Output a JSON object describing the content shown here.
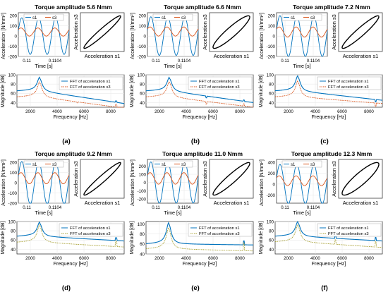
{
  "colors": {
    "s1": "#0072BD",
    "s3": "#D95319",
    "s3_alt": "#A8A032",
    "loop": "#000000",
    "grid": "#e6e6e6"
  },
  "chart_data": [
    {
      "panel_label": "(a)",
      "title": "Torque amplitude 5.6 Nmm",
      "time_plot": {
        "type": "line",
        "xlabel": "Time [s]",
        "ylabel": "Acceleration [N/mm²]",
        "xticks": [
          "0.11",
          "0.1104"
        ],
        "yticks": [
          -200,
          -100,
          0,
          100,
          200
        ],
        "ylim": [
          -200,
          230
        ],
        "series": [
          {
            "name": "s1",
            "amplitude": 180,
            "offset": 0
          },
          {
            "name": "s3",
            "amplitude": 40,
            "offset": 40
          }
        ],
        "cycles": 3,
        "legend": "top"
      },
      "phase_plot": {
        "xlabel": "Acceleration s1",
        "ylabel": "Acceleration s3",
        "loop_width": 0.12
      },
      "fft_plot": {
        "type": "line",
        "xlabel": "Frequency [Hz]",
        "ylabel": "Magnitude [dB]",
        "xticks": [
          2000,
          4000,
          6000,
          8000
        ],
        "xlim": [
          1000,
          9000
        ],
        "yticks": [
          40,
          60,
          80,
          100
        ],
        "ylim": [
          30,
          100
        ],
        "series": [
          {
            "name": "FFT of acceleration s1",
            "color_key": "s1",
            "style": "solid",
            "base": 65,
            "peak_f": 2700,
            "peak": 92,
            "tail": 38,
            "spikes": [
              [
                8400,
                3
              ]
            ]
          },
          {
            "name": "FFT of acceleration s3",
            "color_key": "s3",
            "style": "dotted",
            "base": 52,
            "peak_f": 2700,
            "peak": 82,
            "tail": 28,
            "spikes": [
              [
                5500,
                -2
              ],
              [
                8400,
                6
              ]
            ]
          }
        ],
        "legend": "top-right"
      }
    },
    {
      "panel_label": "(b)",
      "title": "Torque amplitude 6.6 Nmm",
      "time_plot": {
        "type": "line",
        "xlabel": "Time [s]",
        "ylabel": "Acceleration [N/mm²]",
        "xticks": [
          "0.11",
          "0.1104"
        ],
        "yticks": [
          -200,
          -100,
          0,
          100,
          200
        ],
        "ylim": [
          -200,
          230
        ],
        "series": [
          {
            "name": "s1",
            "amplitude": 190,
            "offset": 0
          },
          {
            "name": "s3",
            "amplitude": 45,
            "offset": 45
          }
        ],
        "cycles": 3,
        "legend": "top"
      },
      "phase_plot": {
        "xlabel": "Acceleration s1",
        "ylabel": "Acceleration s3",
        "loop_width": 0.18
      },
      "fft_plot": {
        "type": "line",
        "xlabel": "Frequency [Hz]",
        "ylabel": "Magnitude [dB]",
        "xticks": [
          2000,
          4000,
          6000,
          8000
        ],
        "xlim": [
          1000,
          9000
        ],
        "yticks": [
          40,
          60,
          80,
          100
        ],
        "ylim": [
          30,
          100
        ],
        "series": [
          {
            "name": "FFT of acceleration s1",
            "color_key": "s1",
            "style": "solid",
            "base": 65,
            "peak_f": 2750,
            "peak": 92,
            "tail": 40,
            "spikes": [
              [
                5500,
                -4
              ],
              [
                8300,
                3
              ]
            ]
          },
          {
            "name": "FFT of acceleration s3",
            "color_key": "s3",
            "style": "dotted",
            "base": 52,
            "peak_f": 2750,
            "peak": 83,
            "tail": 30,
            "spikes": [
              [
                5500,
                -6
              ],
              [
                8300,
                5
              ]
            ]
          }
        ],
        "legend": "top-right"
      }
    },
    {
      "panel_label": "(c)",
      "title": "Torque amplitude 7.2 Nmm",
      "time_plot": {
        "type": "line",
        "xlabel": "Time [s]",
        "ylabel": "Acceleration [N/mm²]",
        "xticks": [
          "0.11",
          "0.1104"
        ],
        "yticks": [
          -200,
          -100,
          0,
          100,
          200
        ],
        "ylim": [
          -200,
          230
        ],
        "series": [
          {
            "name": "s1",
            "amplitude": 200,
            "offset": 0
          },
          {
            "name": "s3",
            "amplitude": 50,
            "offset": 40
          }
        ],
        "cycles": 3,
        "legend": "top"
      },
      "phase_plot": {
        "xlabel": "Acceleration s1",
        "ylabel": "Acceleration s3",
        "loop_width": 0.15
      },
      "fft_plot": {
        "type": "line",
        "xlabel": "Frequency [Hz]",
        "ylabel": "Magnitude [dB]",
        "xticks": [
          2000,
          4000,
          6000,
          8000
        ],
        "xlim": [
          1000,
          9000
        ],
        "yticks": [
          40,
          60,
          80,
          100
        ],
        "ylim": [
          30,
          100
        ],
        "series": [
          {
            "name": "FFT of acceleration s1",
            "color_key": "s1",
            "style": "solid",
            "base": 65,
            "peak_f": 2700,
            "peak": 95,
            "tail": 45,
            "spikes": [
              [
                8500,
                -5
              ]
            ]
          },
          {
            "name": "FFT of acceleration s3",
            "color_key": "s3",
            "style": "dotted",
            "base": 52,
            "peak_f": 2700,
            "peak": 84,
            "tail": 38,
            "spikes": [
              [
                8500,
                -8
              ]
            ]
          }
        ],
        "legend": "top-right"
      }
    },
    {
      "panel_label": "(d)",
      "title": "Torque amplitude 9.2 Nmm",
      "time_plot": {
        "type": "line",
        "xlabel": "Time [s]",
        "ylabel": "Acceleration [N/mm²]",
        "xticks": [
          "0.11",
          "0.1104"
        ],
        "yticks": [
          -200,
          -100,
          0,
          100,
          200
        ],
        "ylim": [
          -200,
          230
        ],
        "series": [
          {
            "name": "s1",
            "amplitude": 210,
            "offset": 0
          },
          {
            "name": "s3",
            "amplitude": 55,
            "offset": 45
          }
        ],
        "cycles": 3,
        "legend": "top"
      },
      "phase_plot": {
        "xlabel": "Acceleration s1",
        "ylabel": "Acceleration s3",
        "loop_width": 0.12
      },
      "fft_plot": {
        "type": "line",
        "xlabel": "Frequency [Hz]",
        "ylabel": "Magnitude [dB]",
        "xticks": [
          2000,
          4000,
          6000,
          8000
        ],
        "xlim": [
          1000,
          9000
        ],
        "yticks": [
          40,
          60,
          80,
          100
        ],
        "ylim": [
          30,
          100
        ],
        "series": [
          {
            "name": "FFT of acceleration s1",
            "color_key": "s1",
            "style": "solid",
            "base": 68,
            "peak_f": 2700,
            "peak": 96,
            "tail": 58,
            "spikes": [
              [
                8400,
                6
              ]
            ]
          },
          {
            "name": "FFT of acceleration s3",
            "color_key": "s3_alt",
            "style": "dotted",
            "base": 55,
            "peak_f": 2700,
            "peak": 90,
            "tail": 45,
            "spikes": [
              [
                8400,
                12
              ]
            ]
          }
        ],
        "legend": "top-right"
      }
    },
    {
      "panel_label": "(e)",
      "title": "Torque amplitude 11.0 Nmm",
      "time_plot": {
        "type": "line",
        "xlabel": "Time [s]",
        "ylabel": "Acceleration [N/mm²]",
        "xticks": [
          "0.11",
          "0.1104"
        ],
        "yticks": [
          -200,
          -100,
          0,
          100,
          200
        ],
        "ylim": [
          -250,
          280
        ],
        "series": [
          {
            "name": "s1",
            "amplitude": 250,
            "offset": 0
          },
          {
            "name": "s3",
            "amplitude": 70,
            "offset": 50
          }
        ],
        "cycles": 3,
        "legend": "top"
      },
      "phase_plot": {
        "xlabel": "Acceleration s1",
        "ylabel": "Acceleration s3",
        "loop_width": 0.16
      },
      "fft_plot": {
        "type": "line",
        "xlabel": "Frequency [Hz]",
        "ylabel": "Magnitude [dB]",
        "xticks": [
          2000,
          4000,
          6000,
          8000
        ],
        "xlim": [
          1000,
          9000
        ],
        "yticks": [
          40,
          60,
          80,
          100
        ],
        "ylim": [
          40,
          105
        ],
        "series": [
          {
            "name": "FFT of acceleration s1",
            "color_key": "s1",
            "style": "solid",
            "base": 60,
            "peak_f": 2700,
            "peak": 100,
            "tail": 58,
            "spikes": [
              [
                8300,
                8
              ]
            ]
          },
          {
            "name": "FFT of acceleration s3",
            "color_key": "s3_alt",
            "style": "dotted",
            "base": 50,
            "peak_f": 2700,
            "peak": 90,
            "tail": 46,
            "spikes": [
              [
                8300,
                16
              ]
            ]
          }
        ],
        "legend": "top-right"
      }
    },
    {
      "panel_label": "(f)",
      "title": "Torque amplitude 12.3 Nmm",
      "time_plot": {
        "type": "line",
        "xlabel": "Time [s]",
        "ylabel": "Acceleration [N/mm²]",
        "xticks": [
          "0.11",
          "0.1104"
        ],
        "yticks": [
          -200,
          0,
          200,
          400
        ],
        "ylim": [
          -350,
          450
        ],
        "series": [
          {
            "name": "s1",
            "amplitude": 360,
            "offset": 0
          },
          {
            "name": "s3",
            "amplitude": 90,
            "offset": 60
          }
        ],
        "cycles": 3,
        "legend": "top"
      },
      "phase_plot": {
        "xlabel": "Acceleration s1",
        "ylabel": "Acceleration s3",
        "loop_width": 0.22
      },
      "fft_plot": {
        "type": "line",
        "xlabel": "Frequency [Hz]",
        "ylabel": "Magnitude [dB]",
        "xticks": [
          2000,
          4000,
          6000,
          8000
        ],
        "xlim": [
          1000,
          9000
        ],
        "yticks": [
          40,
          60,
          80,
          100
        ],
        "ylim": [
          30,
          100
        ],
        "series": [
          {
            "name": "FFT of acceleration s1",
            "color_key": "s1",
            "style": "solid",
            "base": 68,
            "peak_f": 2700,
            "peak": 97,
            "tail": 58,
            "spikes": [
              [
                5500,
                8
              ],
              [
                8500,
                7
              ]
            ]
          },
          {
            "name": "FFT of acceleration s3",
            "color_key": "s3_alt",
            "style": "dotted",
            "base": 56,
            "peak_f": 2700,
            "peak": 90,
            "tail": 44,
            "spikes": [
              [
                5500,
                10
              ],
              [
                8500,
                12
              ]
            ]
          }
        ],
        "legend": "top-right"
      }
    }
  ]
}
